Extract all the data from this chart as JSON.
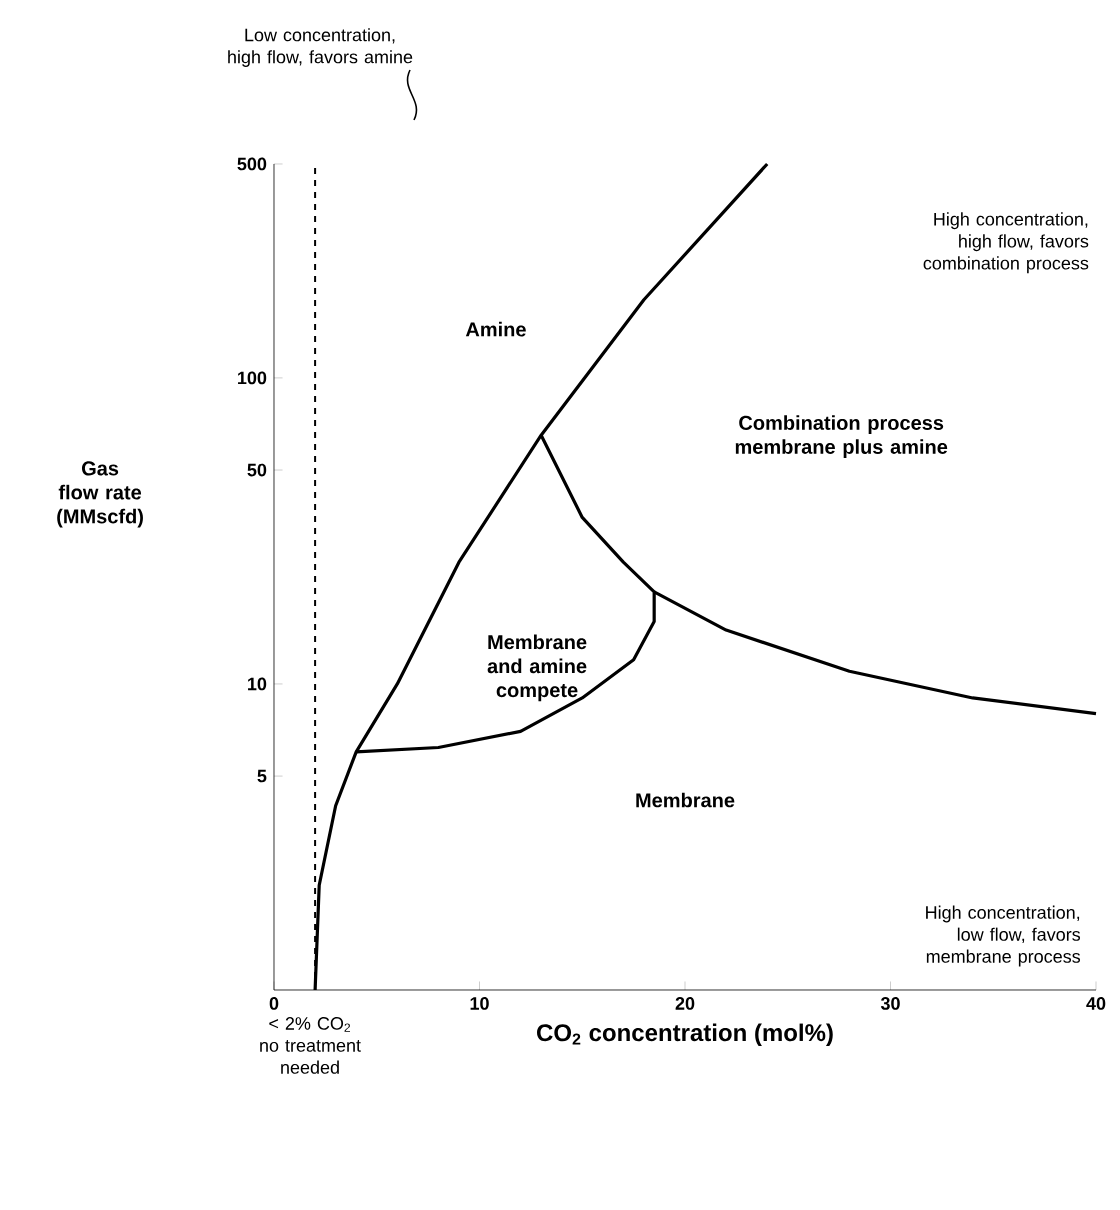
{
  "chart_data": {
    "type": "line",
    "xlabel": "CO$_{2}$ concentration (mol%)",
    "ylabel": "Gas flow rate (MMscfd)",
    "log": "y",
    "xlim": [
      0,
      40
    ],
    "ylim": [
      1,
      500
    ],
    "xticks": [
      0,
      10,
      20,
      30,
      40
    ],
    "yticks": [
      5,
      10,
      50,
      100,
      500
    ],
    "grid": false,
    "marker": "none",
    "line_style": "solid",
    "series": [
      {
        "color": "#000000",
        "x": [
          2,
          2.2,
          3,
          4,
          6,
          9,
          13,
          18,
          24
        ],
        "values": [
          1,
          2.2,
          4,
          6,
          10,
          25,
          65,
          180,
          500
        ]
      },
      {
        "color": "#000000",
        "x": [
          13,
          15,
          17,
          18.5,
          18.5,
          17.5,
          15,
          12,
          8,
          4
        ],
        "values": [
          65,
          35,
          25,
          20,
          16,
          12,
          9,
          7,
          6.2,
          6
        ]
      },
      {
        "color": "#000000",
        "x": [
          18.5,
          22,
          28,
          34,
          40
        ],
        "values": [
          20,
          15,
          11,
          9,
          8
        ]
      }
    ],
    "ref_lines": [
      {
        "axis": "x",
        "value": 2,
        "line_style": "dashed",
        "color": "#000000"
      }
    ],
    "annotations": [
      "Low concentration, high flow, favors amine",
      "< 2% CO$_{2}$ no treatment needed",
      "Amine",
      "Combination process membrane plus amine",
      "Membrane and amine compete",
      "Membrane",
      "High concentration, high flow, favors combination process",
      "High concentration, low flow, favors membrane process"
    ]
  }
}
